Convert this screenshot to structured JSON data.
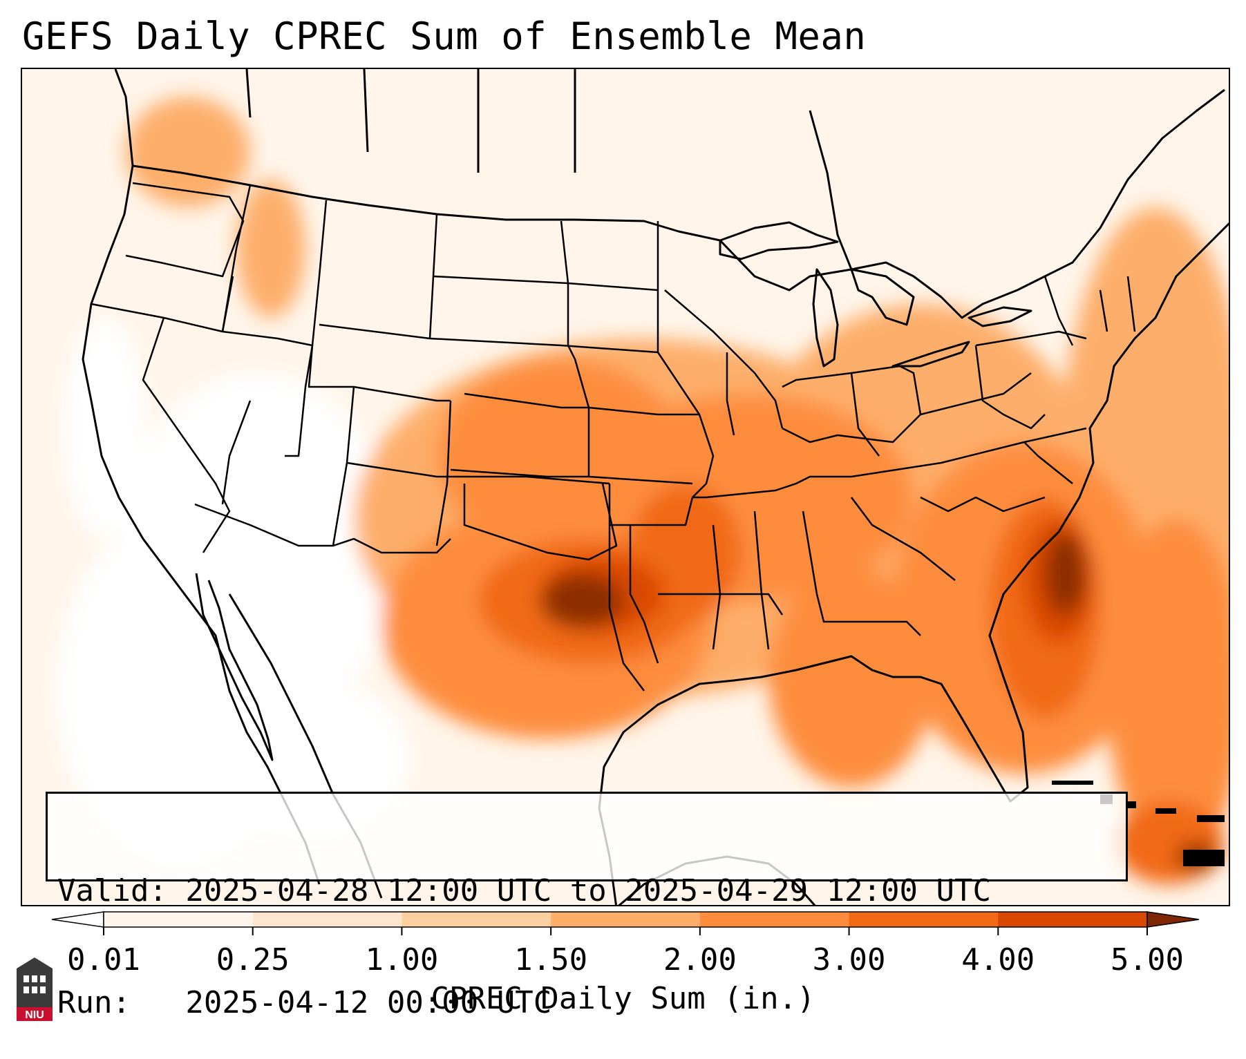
{
  "title": "GEFS Daily CPREC Sum of Ensemble Mean",
  "info": {
    "valid_line": "Valid: 2025-04-28 12:00 UTC to 2025-04-29 12:00 UTC",
    "run_line": "Run:   2025-04-12 00:00 UTC"
  },
  "colorbar": {
    "label": "CPREC Daily Sum (in.)",
    "ticks": [
      "0.01",
      "0.25",
      "1.00",
      "1.50",
      "2.00",
      "3.00",
      "4.00",
      "5.00"
    ],
    "colors": [
      "#fff5eb",
      "#fee6ce",
      "#fdd0a2",
      "#fdae6b",
      "#fd8d3c",
      "#f16913",
      "#d94801",
      "#8c2d04"
    ],
    "under_color": "#ffffff",
    "over_color": "#7f2704"
  },
  "logo": {
    "text": "NIU",
    "color": "#c8102e"
  }
}
